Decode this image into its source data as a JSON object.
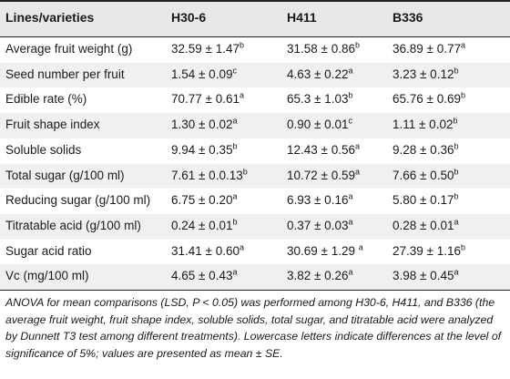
{
  "table": {
    "headers": [
      "Lines/varieties",
      "H30-6",
      "H411",
      "B336"
    ],
    "rows": [
      {
        "label": "Average fruit weight (g)",
        "cells": [
          {
            "value": "32.59 ± 1.47",
            "sup": "b"
          },
          {
            "value": "31.58 ± 0.86",
            "sup": "b"
          },
          {
            "value": "36.89 ± 0.77",
            "sup": "a"
          }
        ]
      },
      {
        "label": "Seed number per fruit",
        "cells": [
          {
            "value": "1.54 ± 0.09",
            "sup": "c"
          },
          {
            "value": "4.63 ± 0.22",
            "sup": "a"
          },
          {
            "value": "3.23 ± 0.12",
            "sup": "b"
          }
        ]
      },
      {
        "label": "Edible rate (%)",
        "cells": [
          {
            "value": "70.77 ± 0.61",
            "sup": "a"
          },
          {
            "value": "65.3 ± 1.03",
            "sup": "b"
          },
          {
            "value": "65.76 ± 0.69",
            "sup": "b"
          }
        ]
      },
      {
        "label": "Fruit shape index",
        "cells": [
          {
            "value": "1.30 ± 0.02",
            "sup": "a"
          },
          {
            "value": "0.90 ± 0.01",
            "sup": "c"
          },
          {
            "value": "1.11 ± 0.02",
            "sup": "b"
          }
        ]
      },
      {
        "label": "Soluble solids",
        "cells": [
          {
            "value": "9.94 ± 0.35",
            "sup": "b"
          },
          {
            "value": "12.43 ± 0.56",
            "sup": "a"
          },
          {
            "value": "9.28 ± 0.36",
            "sup": "b"
          }
        ]
      },
      {
        "label": "Total sugar (g/100 ml)",
        "cells": [
          {
            "value": "7.61 ± 0.0.13",
            "sup": "b"
          },
          {
            "value": "10.72 ± 0.59",
            "sup": "a"
          },
          {
            "value": "7.66 ± 0.50",
            "sup": "b"
          }
        ]
      },
      {
        "label": "Reducing sugar (g/100 ml)",
        "cells": [
          {
            "value": "6.75 ± 0.20",
            "sup": "a"
          },
          {
            "value": "6.93 ± 0.16",
            "sup": "a"
          },
          {
            "value": "5.80 ± 0.17",
            "sup": "b"
          }
        ]
      },
      {
        "label": "Titratable acid (g/100 ml)",
        "cells": [
          {
            "value": "0.24 ± 0.01",
            "sup": "b"
          },
          {
            "value": "0.37 ± 0.03",
            "sup": "a"
          },
          {
            "value": "0.28 ± 0.01",
            "sup": "a"
          }
        ]
      },
      {
        "label": "Sugar acid ratio",
        "cells": [
          {
            "value": "31.41 ± 0.60",
            "sup": "a"
          },
          {
            "value": "30.69 ± 1.29 ",
            "sup": "a"
          },
          {
            "value": "27.39 ± 1.16",
            "sup": "b"
          }
        ]
      },
      {
        "label": "Vc (mg/100 ml)",
        "cells": [
          {
            "value": "4.65 ± 0.43",
            "sup": "a"
          },
          {
            "value": "3.82 ± 0.26",
            "sup": "a"
          },
          {
            "value": "3.98 ± 0.45",
            "sup": "a"
          }
        ]
      }
    ]
  },
  "footnote": "ANOVA for mean comparisons (LSD, P < 0.05) was performed among H30-6, H411, and B336 (the average fruit weight, fruit shape index, soluble solids, total sugar, and titratable acid were analyzed by Dunnett T3 test among different treatments). Lowercase letters indicate differences at the level of significance of 5%; values are presented as mean ± SE."
}
